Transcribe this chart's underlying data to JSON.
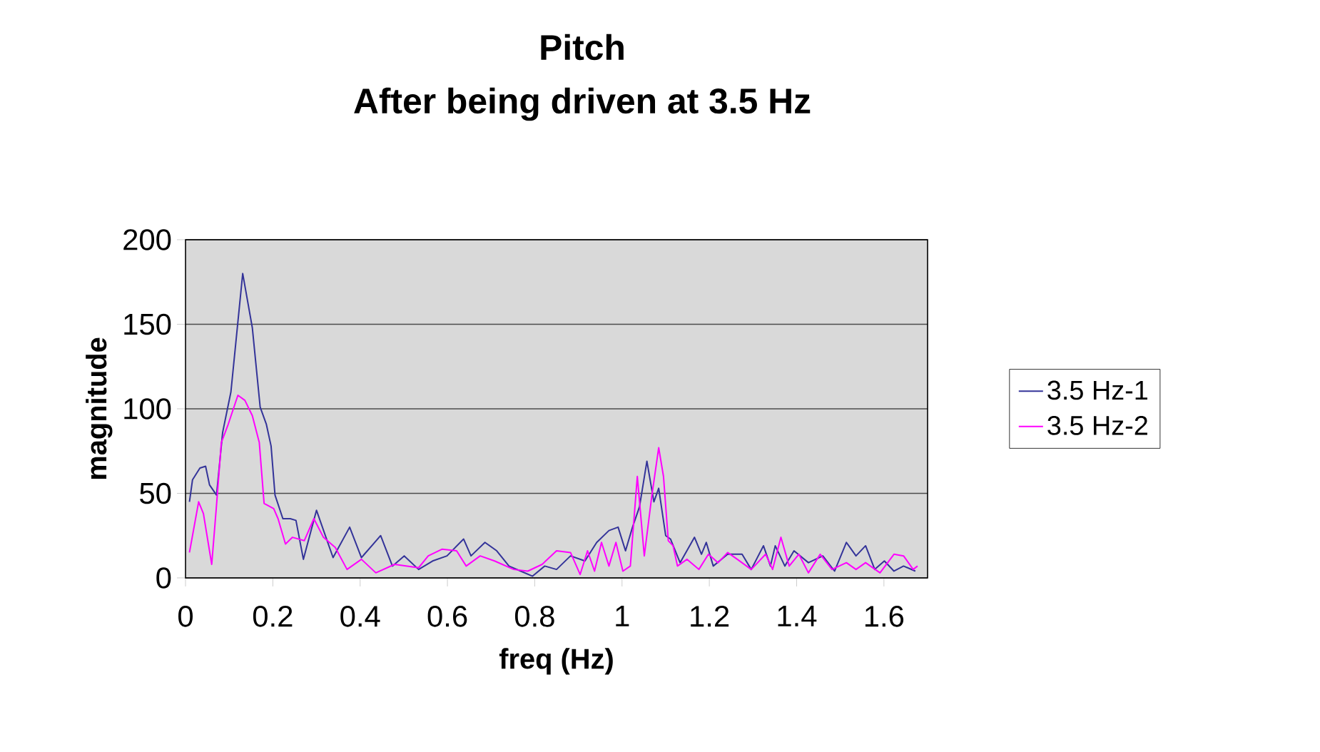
{
  "chart_data": {
    "type": "line",
    "title": "Pitch",
    "subtitle": "After being driven at 3.5 Hz",
    "xlabel": "freq (Hz)",
    "ylabel": "magnitude",
    "xlim": [
      0,
      1.7
    ],
    "xticks": [
      0,
      0.2,
      0.4,
      0.6,
      0.8,
      1,
      1.2,
      1.4,
      1.6
    ],
    "ylim": [
      0,
      200
    ],
    "yticks": [
      0,
      50,
      100,
      150,
      200
    ],
    "grid": "y",
    "legend": "right",
    "marker": "none",
    "line_style": "solid",
    "series": [
      {
        "name": "3.5 Hz-1",
        "color": "#333399",
        "x": [
          0.009,
          0.016,
          0.033,
          0.046,
          0.055,
          0.071,
          0.085,
          0.104,
          0.131,
          0.153,
          0.171,
          0.185,
          0.196,
          0.205,
          0.223,
          0.24,
          0.253,
          0.27,
          0.3,
          0.338,
          0.376,
          0.403,
          0.447,
          0.474,
          0.501,
          0.534,
          0.566,
          0.599,
          0.637,
          0.654,
          0.686,
          0.713,
          0.741,
          0.768,
          0.795,
          0.823,
          0.85,
          0.882,
          0.915,
          0.942,
          0.97,
          0.991,
          1.008,
          1.024,
          1.04,
          1.057,
          1.073,
          1.084,
          1.1,
          1.111,
          1.133,
          1.166,
          1.182,
          1.193,
          1.209,
          1.242,
          1.275,
          1.296,
          1.324,
          1.34,
          1.351,
          1.373,
          1.394,
          1.427,
          1.46,
          1.487,
          1.514,
          1.536,
          1.558,
          1.579,
          1.601,
          1.623,
          1.645,
          1.672
        ],
        "values": [
          45,
          58,
          65,
          66,
          55,
          49,
          86,
          110,
          180,
          148,
          101,
          91,
          78,
          49,
          35,
          35,
          34,
          11,
          40,
          12,
          30,
          12,
          25,
          7,
          13,
          5,
          10,
          13,
          23,
          13,
          21,
          16,
          7,
          4,
          1,
          7,
          5,
          13,
          10,
          21,
          28,
          30,
          16,
          30,
          42,
          69,
          45,
          53,
          25,
          23,
          9,
          24,
          14,
          21,
          7,
          14,
          14,
          5,
          19,
          7,
          19,
          7,
          16,
          9,
          13,
          4,
          21,
          13,
          19,
          5,
          10,
          4,
          7,
          4
        ]
      },
      {
        "name": "3.5 Hz-2",
        "color": "#ff00ff",
        "x": [
          0.009,
          0.03,
          0.041,
          0.06,
          0.071,
          0.082,
          0.098,
          0.12,
          0.136,
          0.153,
          0.169,
          0.18,
          0.202,
          0.212,
          0.229,
          0.245,
          0.272,
          0.294,
          0.316,
          0.343,
          0.37,
          0.403,
          0.436,
          0.479,
          0.534,
          0.556,
          0.588,
          0.621,
          0.643,
          0.675,
          0.708,
          0.752,
          0.784,
          0.817,
          0.85,
          0.882,
          0.904,
          0.921,
          0.937,
          0.953,
          0.97,
          0.986,
          1.002,
          1.019,
          1.035,
          1.051,
          1.068,
          1.084,
          1.095,
          1.106,
          1.117,
          1.127,
          1.149,
          1.176,
          1.198,
          1.22,
          1.242,
          1.264,
          1.296,
          1.329,
          1.345,
          1.364,
          1.383,
          1.405,
          1.427,
          1.454,
          1.481,
          1.514,
          1.536,
          1.558,
          1.591,
          1.623,
          1.645,
          1.667,
          1.677
        ],
        "values": [
          15,
          45,
          38,
          8,
          43,
          80,
          91,
          108,
          105,
          96,
          80,
          44,
          41,
          35,
          20,
          24,
          22,
          35,
          24,
          18,
          5,
          11,
          3,
          8,
          6,
          13,
          17,
          16,
          7,
          13,
          10,
          5,
          4,
          8,
          16,
          15,
          2,
          16,
          4,
          21,
          7,
          21,
          4,
          7,
          60,
          13,
          48,
          77,
          60,
          22,
          19,
          7,
          11,
          5,
          14,
          9,
          15,
          11,
          5,
          14,
          5,
          24,
          7,
          14,
          3,
          14,
          5,
          9,
          5,
          9,
          3,
          14,
          13,
          5,
          7
        ]
      }
    ]
  }
}
